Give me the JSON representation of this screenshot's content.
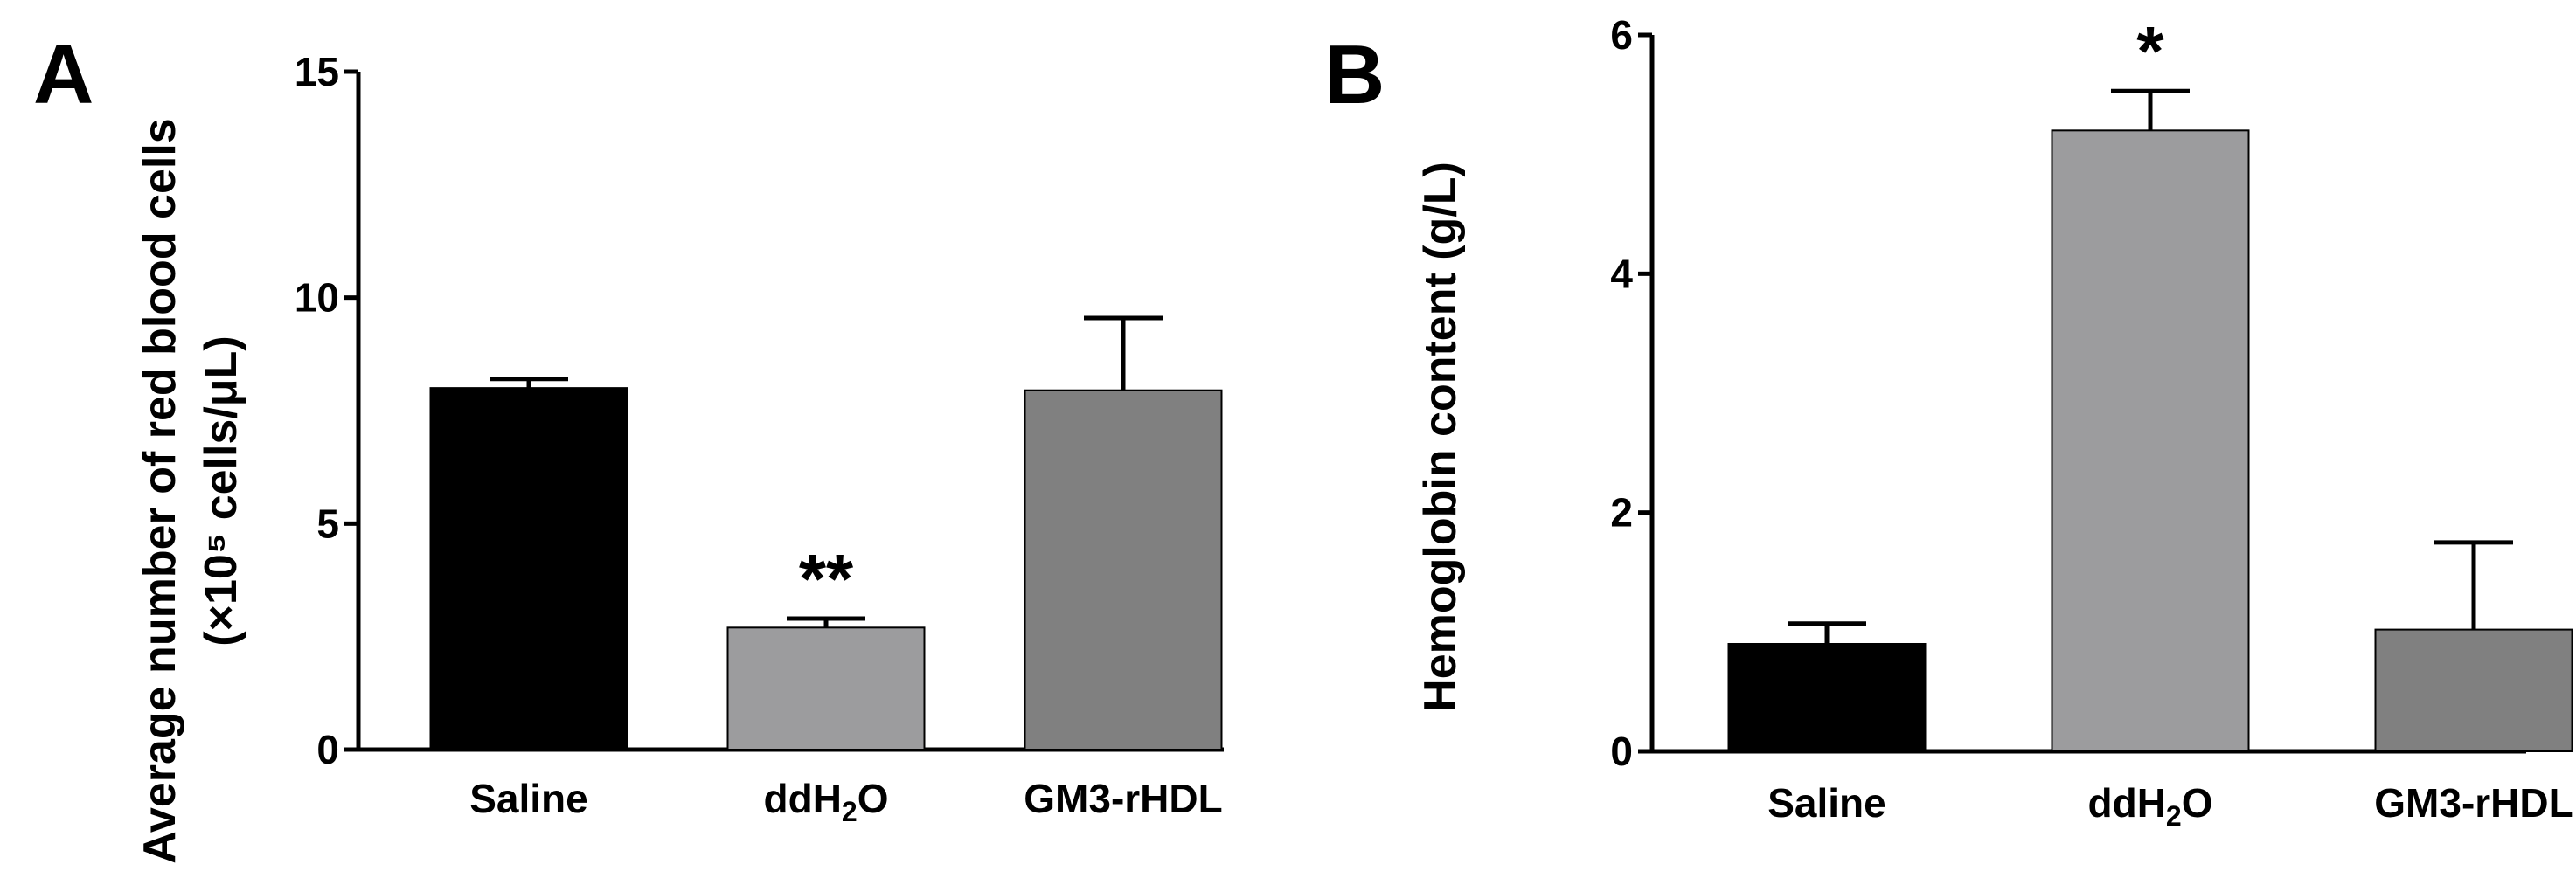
{
  "chart_data": [
    {
      "type": "bar",
      "panel": "A",
      "categories": [
        "Saline",
        "ddH2O",
        "GM3-rHDL"
      ],
      "values": [
        8.0,
        2.7,
        7.95
      ],
      "errors": [
        0.2,
        0.2,
        1.6
      ],
      "colors": [
        "#000000",
        "#9c9c9e",
        "#808080"
      ],
      "significance": [
        "",
        "**",
        ""
      ],
      "ylabel_line1": "Average number of red blood cells",
      "ylabel_line2": "(×10⁵ cells/μL)",
      "ylim": [
        0,
        15
      ],
      "yticks": [
        "0",
        "5",
        "10",
        "15"
      ]
    },
    {
      "type": "bar",
      "panel": "B",
      "categories": [
        "Saline",
        "ddH2O",
        "GM3-rHDL"
      ],
      "values": [
        0.9,
        5.2,
        1.02
      ],
      "errors": [
        0.17,
        0.33,
        0.73
      ],
      "colors": [
        "#000000",
        "#9c9c9e",
        "#808080"
      ],
      "significance": [
        "",
        "*",
        ""
      ],
      "ylabel": "Hemoglobin content (g/L)",
      "ylim": [
        0,
        6
      ],
      "yticks": [
        "0",
        "2",
        "4",
        "6"
      ]
    }
  ]
}
